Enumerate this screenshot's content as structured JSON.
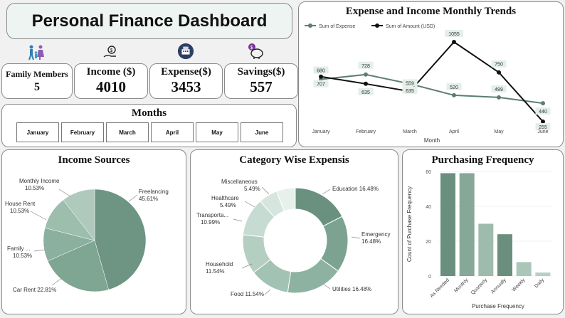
{
  "header": {
    "title": "Personal Finance Dashboard"
  },
  "kpis": [
    {
      "label": "Family Members",
      "value": "5",
      "icon": "family-icon"
    },
    {
      "label": "Income ($)",
      "value": "4010",
      "icon": "income-hand-coin-icon"
    },
    {
      "label": "Expense($)",
      "value": "3453",
      "icon": "expense-register-icon"
    },
    {
      "label": "Savings($)",
      "value": "557",
      "icon": "savings-piggy-bank-icon"
    }
  ],
  "months": {
    "title": "Months",
    "items": [
      "January",
      "February",
      "March",
      "April",
      "May",
      "June"
    ]
  },
  "trend_title": "Expense and Income Monthly Trends",
  "income_title": "Income Sources",
  "category_title": "Category Wise Expensis",
  "frequency_title": "Purchasing Frequency",
  "chart_data": [
    {
      "type": "line",
      "title": "Expense and Income Monthly Trends",
      "xlabel": "Month",
      "categories": [
        "January",
        "February",
        "March",
        "April",
        "May",
        "June"
      ],
      "legend_position": "top-left",
      "series": [
        {
          "name": "Sum of   Expense",
          "color": "#5d7d74",
          "values": [
            680,
            728,
            635,
            520,
            499,
            440
          ]
        },
        {
          "name": "Sum of   Amount (USD)",
          "color": "#111111",
          "values": [
            707,
            635,
            559,
            1055,
            750,
            255
          ]
        }
      ],
      "labels": [
        {
          "series": 0,
          "index": 0,
          "text": "680"
        },
        {
          "series": 0,
          "index": 1,
          "text": "728"
        },
        {
          "series": 0,
          "index": 2,
          "text": "635"
        },
        {
          "series": 0,
          "index": 3,
          "text": "520"
        },
        {
          "series": 0,
          "index": 4,
          "text": "499"
        },
        {
          "series": 0,
          "index": 5,
          "text": "440"
        },
        {
          "series": 1,
          "index": 0,
          "text": "707"
        },
        {
          "series": 1,
          "index": 1,
          "text": "635"
        },
        {
          "series": 1,
          "index": 2,
          "text": "559"
        },
        {
          "series": 1,
          "index": 3,
          "text": "1055"
        },
        {
          "series": 1,
          "index": 4,
          "text": "750"
        },
        {
          "series": 1,
          "index": 5,
          "text": "255"
        }
      ]
    },
    {
      "type": "pie",
      "title": "Income Sources",
      "slices": [
        {
          "label": "Freelancing",
          "pct": "45.61%",
          "value": 45.61,
          "color": "#6e9483"
        },
        {
          "label": "Car Rent",
          "pct": "22.81%",
          "value": 22.81,
          "color": "#7fa593"
        },
        {
          "label": "Family ...",
          "pct": "10.53%",
          "value": 10.53,
          "color": "#8bb09f"
        },
        {
          "label": "House Rent",
          "pct": "10.53%",
          "value": 10.53,
          "color": "#9dbdad"
        },
        {
          "label": "Monthly Income",
          "pct": "10.53%",
          "value": 10.53,
          "color": "#afcabd"
        }
      ]
    },
    {
      "type": "pie",
      "title": "Category Wise Expensis",
      "slices": [
        {
          "label": "Education",
          "pct": "16.48%",
          "value": 16.48,
          "color": "#6a9180"
        },
        {
          "label": "Emergency",
          "pct": "16.48%",
          "value": 16.48,
          "color": "#7ca291"
        },
        {
          "label": "Utilities",
          "pct": "16.48%",
          "value": 16.48,
          "color": "#8db2a1"
        },
        {
          "label": "Food",
          "pct": "11.54%",
          "value": 11.54,
          "color": "#a2c2b3"
        },
        {
          "label": "Household",
          "pct": "11.54%",
          "value": 11.54,
          "color": "#b4cfc2"
        },
        {
          "label": "Transporta...",
          "pct": "10.99%",
          "value": 10.99,
          "color": "#c6dbd1"
        },
        {
          "label": "Healthcare",
          "pct": "5.49%",
          "value": 5.49,
          "color": "#d6e6de"
        },
        {
          "label": "Miscellaneous",
          "pct": "5.49%",
          "value": 5.49,
          "color": "#e6f1ec"
        }
      ]
    },
    {
      "type": "bar",
      "title": "Purchasing Frequency",
      "xlabel": "Purchase Frequency",
      "ylabel": "Count of Purchase Frequency",
      "ylim": [
        0,
        60
      ],
      "yticks": [
        "0",
        "20",
        "40",
        "60"
      ],
      "categories": [
        "As Needed",
        "Monthly",
        "Quarterly",
        "Annually",
        "Weekly",
        "Daily"
      ],
      "values": [
        59,
        59,
        30,
        24,
        8,
        2
      ],
      "colors": [
        "#6a8f7f",
        "#86a898",
        "#9dbcad",
        "#6a8f7f",
        "#a9c6b8",
        "#b7d0c4"
      ]
    }
  ]
}
